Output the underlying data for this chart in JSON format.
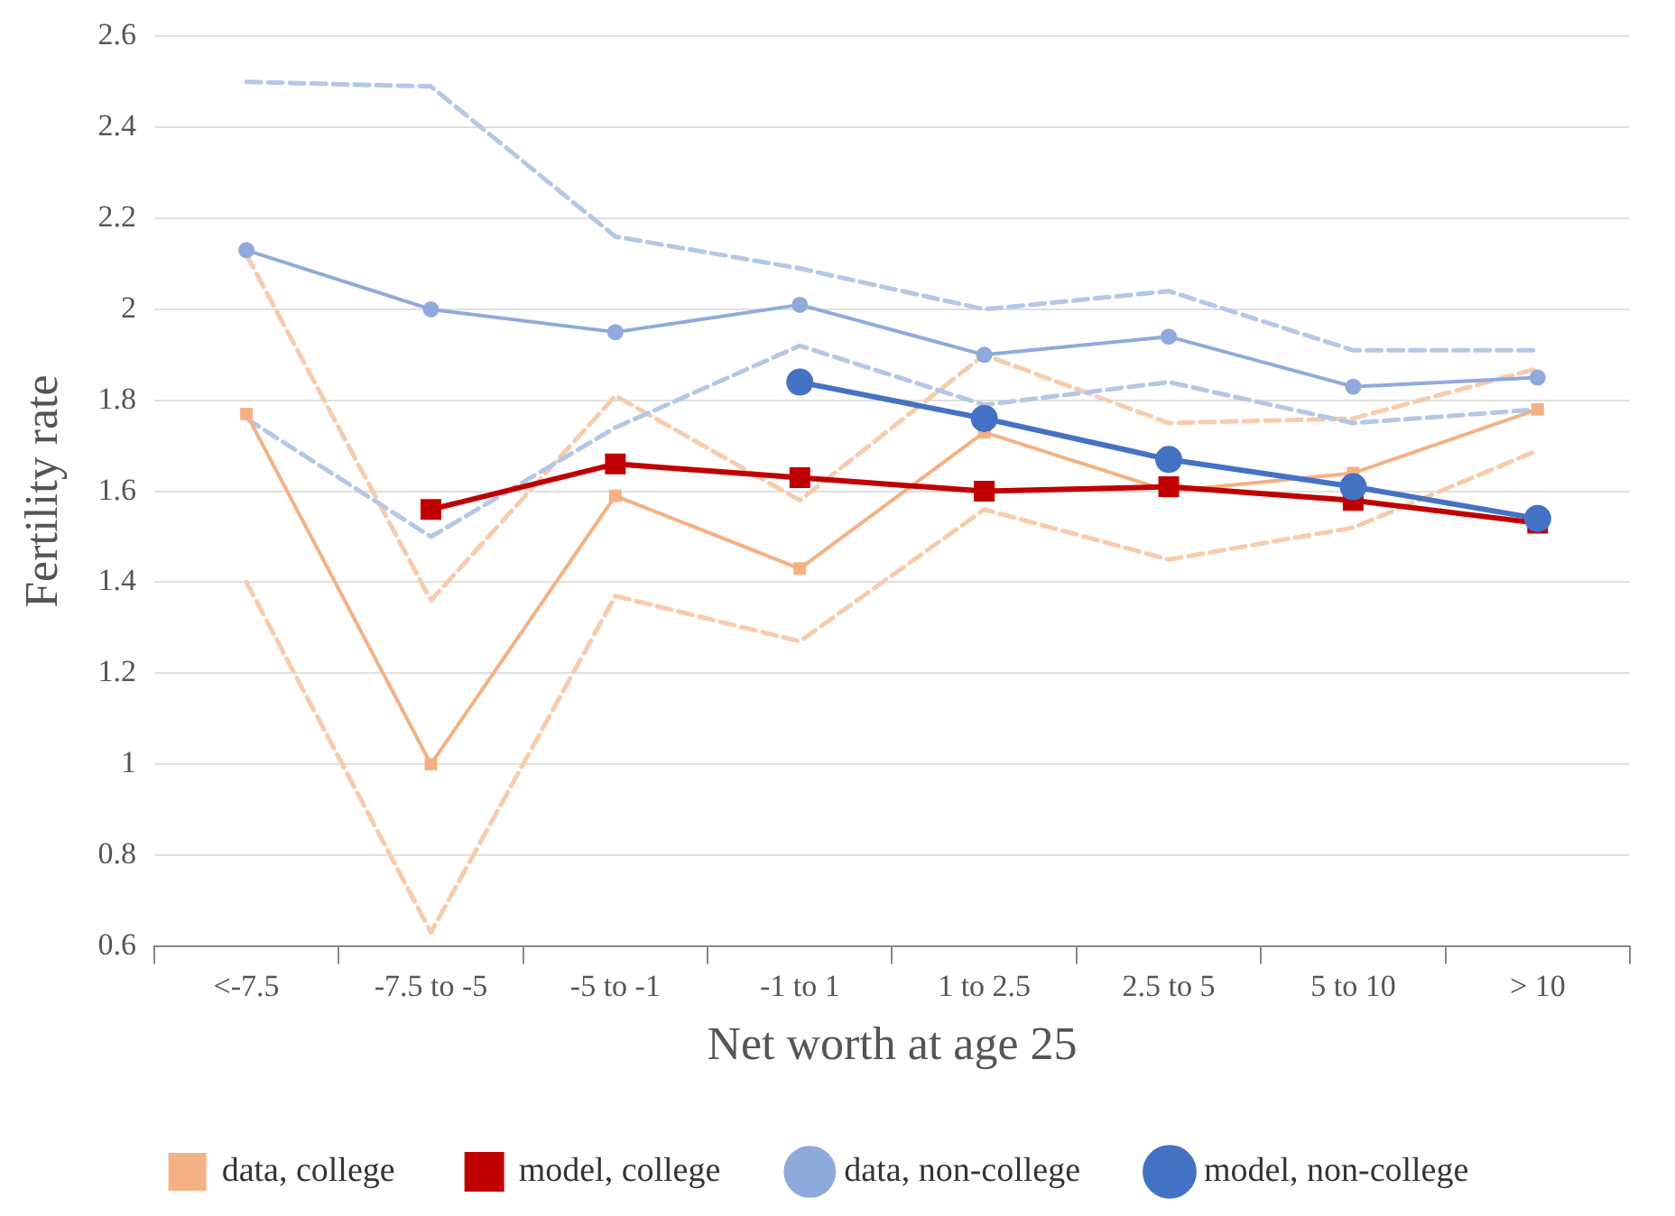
{
  "chart_data": {
    "type": "line",
    "xlabel": "Net worth at age 25",
    "ylabel": "Fertility rate",
    "categories": [
      "<-7.5",
      "-7.5 to -5",
      "-5 to -1",
      "-1 to 1",
      "1 to 2.5",
      "2.5 to 5",
      "5 to 10",
      "> 10"
    ],
    "ylim": [
      0.6,
      2.6
    ],
    "yticks": [
      0.6,
      0.8,
      1,
      1.2,
      1.4,
      1.6,
      1.8,
      2,
      2.2,
      2.4,
      2.6
    ],
    "grid": "y",
    "legend": "bottom",
    "series": [
      {
        "color": "#f8cbad",
        "line_style": "dashed",
        "marker": "none",
        "values": [
          2.12,
          1.36,
          1.81,
          1.58,
          1.9,
          1.75,
          1.76,
          1.87
        ]
      },
      {
        "color": "#f8cbad",
        "line_style": "dashed",
        "marker": "none",
        "values": [
          1.4,
          0.63,
          1.37,
          1.27,
          1.56,
          1.45,
          1.52,
          1.69
        ]
      },
      {
        "color": "#b4c7e7",
        "line_style": "dashed",
        "marker": "none",
        "values": [
          2.5,
          2.49,
          2.16,
          2.09,
          2.0,
          2.04,
          1.91,
          1.91
        ]
      },
      {
        "color": "#b4c7e7",
        "line_style": "dashed",
        "marker": "none",
        "values": [
          1.76,
          1.5,
          1.74,
          1.92,
          1.79,
          1.84,
          1.75,
          1.78
        ]
      },
      {
        "name": "data, college",
        "color": "#f4b183",
        "line_style": "solid",
        "marker": "square",
        "values": [
          1.77,
          1.0,
          1.59,
          1.43,
          1.73,
          1.6,
          1.64,
          1.78
        ]
      },
      {
        "name": "model, college",
        "color": "#c00000",
        "line_style": "solid",
        "marker": "square",
        "values": [
          null,
          1.56,
          1.66,
          1.63,
          1.6,
          1.61,
          1.58,
          1.53
        ]
      },
      {
        "name": "data, non-college",
        "color": "#8faadc",
        "line_style": "solid",
        "marker": "circle",
        "values": [
          2.13,
          2.0,
          1.95,
          2.01,
          1.9,
          1.94,
          1.83,
          1.85
        ]
      },
      {
        "name": "model, non-college",
        "color": "#4472c4",
        "line_style": "solid",
        "marker": "circle",
        "values": [
          null,
          null,
          null,
          1.84,
          1.76,
          1.67,
          1.61,
          1.54
        ]
      }
    ]
  }
}
